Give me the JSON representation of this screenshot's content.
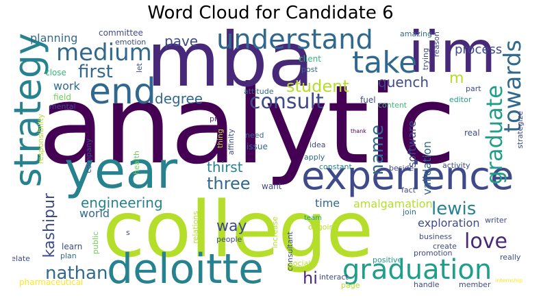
{
  "title": "Word Cloud for Candidate 6",
  "words": {
    "analytic": "analytic",
    "mba": "mba",
    "iim": "iim",
    "college": "college",
    "year": "year",
    "experience": "experience",
    "deloitte": "deloitte",
    "strategy": "strategy",
    "end": "end",
    "understand": "understand",
    "take": "take",
    "medium": "medium",
    "graduation": "graduation",
    "towards": "towards",
    "graduate": "graduate",
    "consult": "consult",
    "love": "love",
    "nathan": "nathan",
    "student": "student",
    "first": "first",
    "name": "name",
    "lewis": "lewis",
    "three": "three",
    "thirst": "thirst",
    "engineering": "engineering",
    "kashipur": "kashipur",
    "degree": "degree",
    "quench": "quench",
    "process": "process",
    "pave": "pave",
    "planning": "planning",
    "way": "way",
    "hi": "hi",
    "m": "m",
    "software": "software",
    "validation": "validation",
    "amalgamation": "amalgamation",
    "exploration": "exploration",
    "world": "world",
    "time": "time",
    "work": "work",
    "committee": "committee",
    "emotion": "emotion",
    "amazing": "amazing",
    "trying": "trying",
    "reason": "reason",
    "strategize": "strategize",
    "client": "client",
    "post": "post",
    "close": "close",
    "let": "let",
    "field": "field",
    "attitude": "attitude",
    "fuel": "fuel",
    "content": "content",
    "editor": "editor",
    "part": "part",
    "mental": "mental",
    "responsibility": "responsibility",
    "pr": "pr",
    "company": "company",
    "affinity": "affinity",
    "thing": "thing",
    "health": "health",
    "need": "need",
    "issue": "issue",
    "idea": "idea",
    "apply": "apply",
    "constant": "constant",
    "thank": "thank",
    "real": "real",
    "beside": "beside",
    "activity": "activity",
    "writer": "writer",
    "fact": "fact",
    "want": "want",
    "team": "team",
    "relations": "relations",
    "ongoing": "ongoing",
    "join": "join",
    "public": "public",
    "learn": "learn",
    "s": "s",
    "plan": "plan",
    "relate": "relate",
    "people": "people",
    "increase": "increase",
    "consultant": "consultant",
    "business": "business",
    "create": "create",
    "promotion": "promotion",
    "really": "really",
    "positive": "positive",
    "social": "social",
    "interact": "interact",
    "page": "page",
    "handle": "handle",
    "member": "member",
    "internship": "internship",
    "pharmaceutical": "pharmaceutical"
  },
  "colors": {
    "dark_purple": "#440154",
    "indigo": "#482878",
    "blue_purple": "#3e4a89",
    "slate_blue": "#31688e",
    "teal_blue": "#26828e",
    "teal": "#1f9e89",
    "green_teal": "#35b779",
    "green": "#6ece58",
    "lime": "#b5de2b",
    "yellow": "#fde725"
  }
}
